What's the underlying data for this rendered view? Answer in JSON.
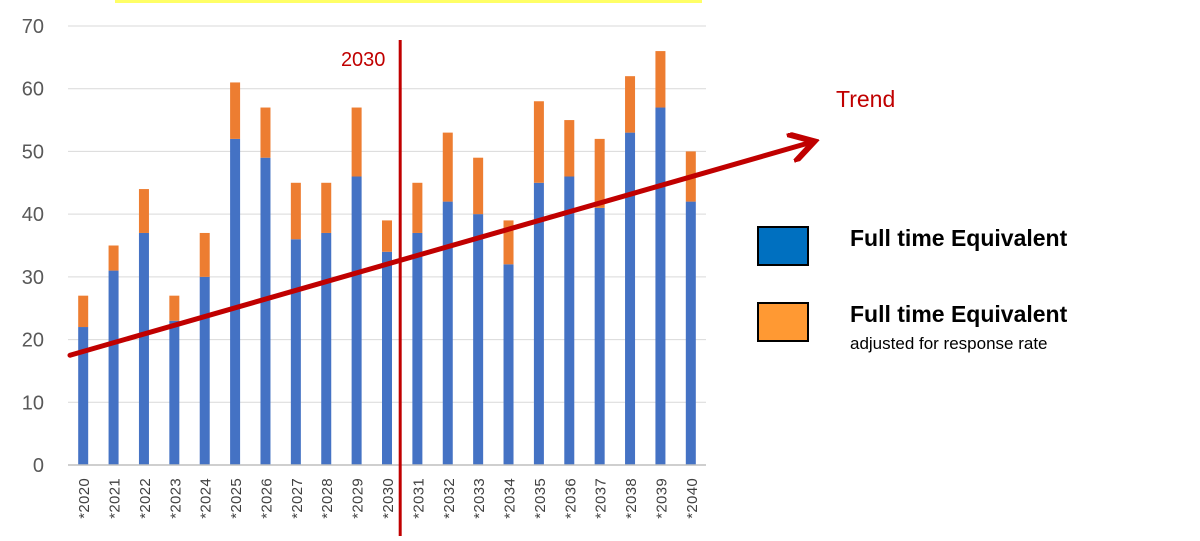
{
  "chart_data": {
    "type": "bar",
    "stacked": true,
    "categories": [
      "*2020",
      "*2021",
      "*2022",
      "*2023",
      "*2024",
      "*2025",
      "*2026",
      "*2027",
      "*2028",
      "*2029",
      "*2030",
      "*2031",
      "*2032",
      "*2033",
      "*2034",
      "*2035",
      "*2036",
      "*2037",
      "*2038",
      "*2039",
      "*2040"
    ],
    "series": [
      {
        "name": "Full time Equivalent",
        "color": "#4472C4",
        "values": [
          22,
          31,
          37,
          23,
          30,
          52,
          49,
          36,
          37,
          46,
          34,
          37,
          42,
          40,
          32,
          45,
          46,
          41,
          53,
          57,
          42
        ]
      },
      {
        "name": "Full time Equivalent adjusted for response rate",
        "color": "#ED7D31",
        "values": [
          5,
          4,
          7,
          4,
          7,
          9,
          8,
          9,
          8,
          11,
          5,
          8,
          11,
          9,
          7,
          13,
          9,
          11,
          9,
          9,
          8
        ]
      }
    ],
    "yticks": [
      "0",
      "10",
      "20",
      "30",
      "40",
      "50",
      "60",
      "70"
    ],
    "ylim": [
      0,
      70
    ],
    "title": "",
    "xlabel": "",
    "ylabel": "",
    "grid": true,
    "legend_position": "right",
    "vertical_marker": {
      "label": "2030",
      "category": "*2030",
      "color": "#C00000"
    },
    "trend": {
      "label": "Trend",
      "color": "#C00000",
      "start_value": 17.5,
      "end_value": 51.5
    }
  },
  "legend": {
    "items": [
      {
        "title": "Full time Equivalent",
        "subtitle": "",
        "color": "#0070C0"
      },
      {
        "title": "Full time Equivalent",
        "subtitle": "adjusted for response rate",
        "color": "#FF9933"
      }
    ]
  },
  "colors": {
    "highlight_bar": "#FFFF66",
    "grid": "#D9D9D9",
    "axis": "#BFBFBF"
  }
}
